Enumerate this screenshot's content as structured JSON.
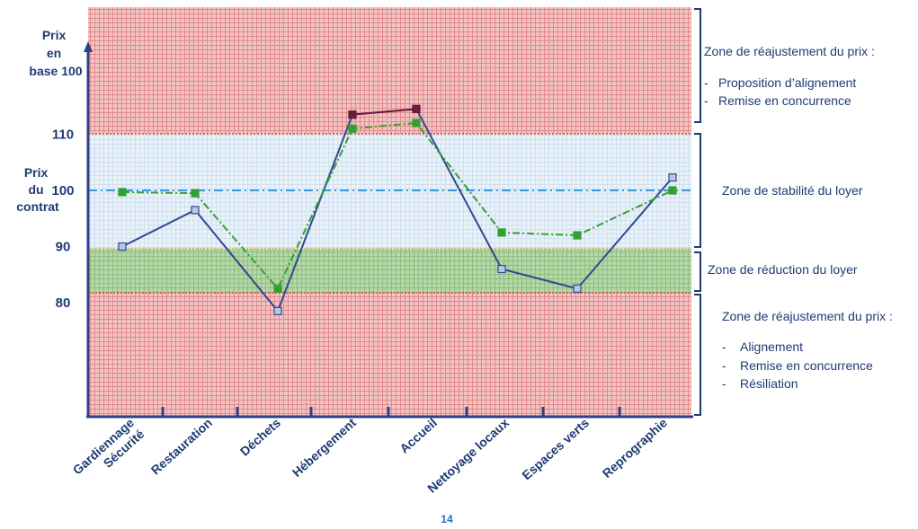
{
  "chart_data": {
    "type": "line",
    "ylabel_top": [
      "Prix",
      "en",
      "base 100"
    ],
    "ylabel_mid": [
      "Prix",
      "du",
      "contrat"
    ],
    "y_ticks": [
      80,
      90,
      100,
      110
    ],
    "categories": [
      "Gardiennage\nSécurité",
      "Restauration",
      "Déchets",
      "Hébergement",
      "Accueil",
      "Nettoyage locaux",
      "Espaces verts",
      "Reprographie"
    ],
    "series": [
      {
        "values": [
          90,
          96.5,
          78.5,
          113.5,
          114.5,
          86,
          82.5,
          102.3
        ],
        "color": "#2e4a8f",
        "marker_fill": "#b9c7e0"
      },
      {
        "values": [
          99.7,
          99.5,
          82.5,
          111,
          112,
          92.5,
          92,
          100
        ],
        "color": "#33a033",
        "marker_fill": "#33a033"
      },
      {
        "values": [
          null,
          null,
          null,
          113.5,
          114.5,
          null,
          null,
          null
        ],
        "color": "#6e1a3a",
        "marker_fill": "#6e1a3a"
      }
    ],
    "reference_line": 100,
    "bands": [
      {
        "from": 110,
        "to": 130,
        "color": "#f0c0c0",
        "role": "reajustement-haut"
      },
      {
        "from": 90,
        "to": 110,
        "color": "#e7f0f8",
        "role": "stabilite"
      },
      {
        "from": 80,
        "to": 90,
        "color": "#a9cf9c",
        "role": "reduction"
      },
      {
        "from": 56,
        "to": 80,
        "color": "#f0c0c0",
        "role": "reajustement-bas"
      }
    ]
  },
  "zones": {
    "top": {
      "title": "Zone de réajustement du prix :",
      "items": [
        "Proposition d’alignement",
        "Remise en concurrence"
      ]
    },
    "stability": {
      "title": "Zone de stabilité du loyer"
    },
    "reduction": {
      "title": "Zone de réduction du loyer"
    },
    "bottom": {
      "title": "Zone de réajustement du prix :",
      "items": [
        "Alignement",
        "Remise en concurrence",
        "Résiliation"
      ]
    }
  },
  "bullet": "-",
  "page_number": "14"
}
